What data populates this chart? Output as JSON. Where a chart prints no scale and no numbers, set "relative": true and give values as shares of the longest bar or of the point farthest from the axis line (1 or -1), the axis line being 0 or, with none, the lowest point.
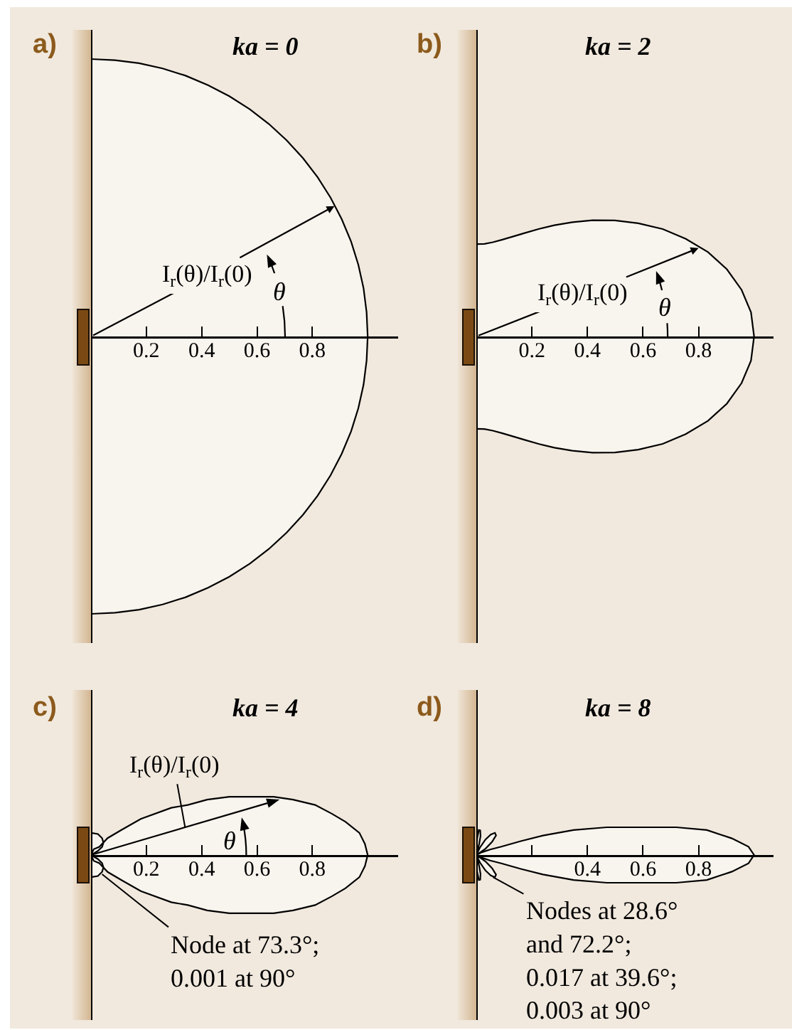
{
  "chart_data": [
    {
      "type": "line",
      "relative": true,
      "title": "ka = 0",
      "annotations": [
        "a)",
        {
          "text": "I$_{r}$(θ)/I$_{r}$(0)",
          "x": 0.88,
          "y": 0.47
        },
        "θ"
      ],
      "series": [
        {
          "color": "#000000",
          "x": [
            0,
            0.087,
            0.174,
            0.259,
            0.342,
            0.423,
            0.5,
            0.574,
            0.643,
            0.707,
            0.766,
            0.819,
            0.866,
            0.906,
            0.94,
            0.966,
            0.985,
            0.996,
            1,
            0.996,
            0.985,
            0.966,
            0.94,
            0.906,
            0.866,
            0.819,
            0.766,
            0.707,
            0.643,
            0.574,
            0.5,
            0.423,
            0.342,
            0.259,
            0.174,
            0.087,
            0
          ],
          "values": [
            1,
            0.996,
            0.985,
            0.966,
            0.94,
            0.906,
            0.866,
            0.819,
            0.766,
            0.707,
            0.643,
            0.574,
            0.5,
            0.423,
            0.342,
            0.259,
            0.174,
            0.087,
            0,
            -0.087,
            -0.174,
            -0.259,
            -0.342,
            -0.423,
            -0.5,
            -0.574,
            -0.643,
            -0.707,
            -0.766,
            -0.819,
            -0.866,
            -0.906,
            -0.94,
            -0.966,
            -0.985,
            -0.996,
            -1
          ]
        }
      ],
      "xlim": [
        0,
        1.11
      ],
      "xticks": [
        0.2,
        0.4,
        0.6,
        0.8
      ],
      "tick_labels": "x"
    },
    {
      "type": "line",
      "relative": true,
      "title": "ka = 2",
      "annotations": [
        "b)",
        {
          "text": "I$_{r}$(θ)/I$_{r}$(0)",
          "x": 0.8,
          "y": 0.76
        },
        "θ"
      ],
      "series": [
        {
          "color": "#000000",
          "x": [
            0,
            0.029,
            0.06,
            0.094,
            0.131,
            0.174,
            0.224,
            0.281,
            0.346,
            0.419,
            0.499,
            0.583,
            0.671,
            0.754,
            0.834,
            0.902,
            0.955,
            0.989,
            1,
            0.989,
            0.955,
            0.902,
            0.834,
            0.754,
            0.671,
            0.583,
            0.499,
            0.419,
            0.346,
            0.281,
            0.224,
            0.174,
            0.131,
            0.094,
            0.06,
            0.029,
            0
          ],
          "values": [
            0.795,
            0.797,
            0.811,
            0.833,
            0.859,
            0.89,
            0.924,
            0.957,
            0.983,
            1,
            0.998,
            0.974,
            0.924,
            0.84,
            0.726,
            0.578,
            0.401,
            0.208,
            0,
            -0.208,
            -0.401,
            -0.578,
            -0.726,
            -0.84,
            -0.924,
            -0.974,
            -0.998,
            -1,
            -0.983,
            -0.957,
            -0.924,
            -0.89,
            -0.859,
            -0.833,
            -0.811,
            -0.797,
            -0.795
          ]
        }
      ],
      "xlim": [
        0,
        1.07
      ],
      "xticks": [
        0.2,
        0.4,
        0.6,
        0.8
      ],
      "tick_labels": "x"
    },
    {
      "type": "line",
      "relative": true,
      "title": "ka = 4",
      "annotations": [
        "c)",
        "I$_{r}$(θ)/I$_{r}$(0)",
        "θ",
        {
          "text": "Node at 73.3°;\n0.001 at 90°",
          "x": 0.04,
          "y": -0.33
        }
      ],
      "series": [
        {
          "color": "#000000",
          "x": [
            0,
            0.025,
            0.04,
            0.045,
            0.04,
            0.025,
            0,
            0.01,
            0.03,
            0.06,
            0.11,
            0.18,
            0.29,
            0.35,
            0.42,
            0.5,
            0.58,
            0.66,
            0.73,
            0.81,
            0.87,
            0.92,
            0.97,
            0.99,
            1,
            0.99,
            0.97,
            0.92,
            0.87,
            0.81,
            0.73,
            0.66,
            0.58,
            0.5,
            0.42,
            0.35,
            0.29,
            0.18,
            0.11,
            0.06,
            0.03,
            0.01,
            0,
            0.025,
            0.04,
            0.045,
            0.04,
            0.025,
            0
          ],
          "values": [
            0.38,
            0.36,
            0.29,
            0.21,
            0.14,
            0.07,
            0,
            0.1,
            0.14,
            0.29,
            0.43,
            0.62,
            0.81,
            0.86,
            0.95,
            1,
            1,
            1,
            0.95,
            0.86,
            0.71,
            0.57,
            0.38,
            0.19,
            0,
            -0.19,
            -0.38,
            -0.57,
            -0.71,
            -0.86,
            -0.95,
            -1,
            -1,
            -1,
            -0.95,
            -0.86,
            -0.81,
            -0.62,
            -0.43,
            -0.29,
            -0.14,
            -0.1,
            0,
            -0.07,
            -0.14,
            -0.21,
            -0.29,
            -0.36,
            -0.38
          ]
        }
      ],
      "xlim": [
        0,
        1.11
      ],
      "xticks": [
        0.2,
        0.4,
        0.6,
        0.8
      ],
      "tick_labels": "x"
    },
    {
      "type": "line",
      "relative": true,
      "title": "ka = 8",
      "annotations": [
        "d)",
        {
          "text": "Nodes at 28.6°\nand 72.2°;\n0.017 at 39.6°;\n0.003 at 90°",
          "x": 0.06,
          "y": -0.8
        }
      ],
      "series": [
        {
          "color": "#000000",
          "x": [
            0,
            0.003,
            0.009,
            0.014,
            0.015,
            0.01,
            0,
            0.013,
            0.033,
            0.052,
            0.067,
            0.071,
            0.057,
            0.033,
            0,
            0.02,
            0.05,
            0.09,
            0.16,
            0.24,
            0.35,
            0.47,
            0.6,
            0.72,
            0.83,
            0.92,
            0.98,
            1,
            0.98,
            0.92,
            0.83,
            0.72,
            0.6,
            0.47,
            0.35,
            0.24,
            0.16,
            0.09,
            0.05,
            0.02,
            0,
            0.033,
            0.057,
            0.071,
            0.067,
            0.052,
            0.033,
            0.013,
            0,
            0.01,
            0.015,
            0.014,
            0.009,
            0.003,
            0
          ],
          "values": [
            0.03,
            0.6,
            0.9,
            0.89,
            0.68,
            0.39,
            0,
            0.27,
            0.56,
            0.74,
            0.8,
            0.71,
            0.48,
            0.23,
            0,
            0.1,
            0.2,
            0.3,
            0.5,
            0.7,
            0.9,
            1,
            1,
            1,
            0.9,
            0.6,
            0.3,
            0,
            -0.3,
            -0.6,
            -0.9,
            -1,
            -1,
            -1,
            -0.9,
            -0.7,
            -0.5,
            -0.3,
            -0.2,
            -0.1,
            0,
            -0.23,
            -0.48,
            -0.71,
            -0.8,
            -0.74,
            -0.56,
            -0.27,
            0,
            -0.39,
            -0.68,
            -0.89,
            -0.9,
            -0.6,
            -0.03
          ]
        }
      ],
      "xlim": [
        0,
        1.07
      ],
      "xticks": [
        {
          "value": 0.2,
          "label": null
        },
        0.4,
        0.6,
        0.8
      ],
      "tick_labels": "x"
    }
  ]
}
